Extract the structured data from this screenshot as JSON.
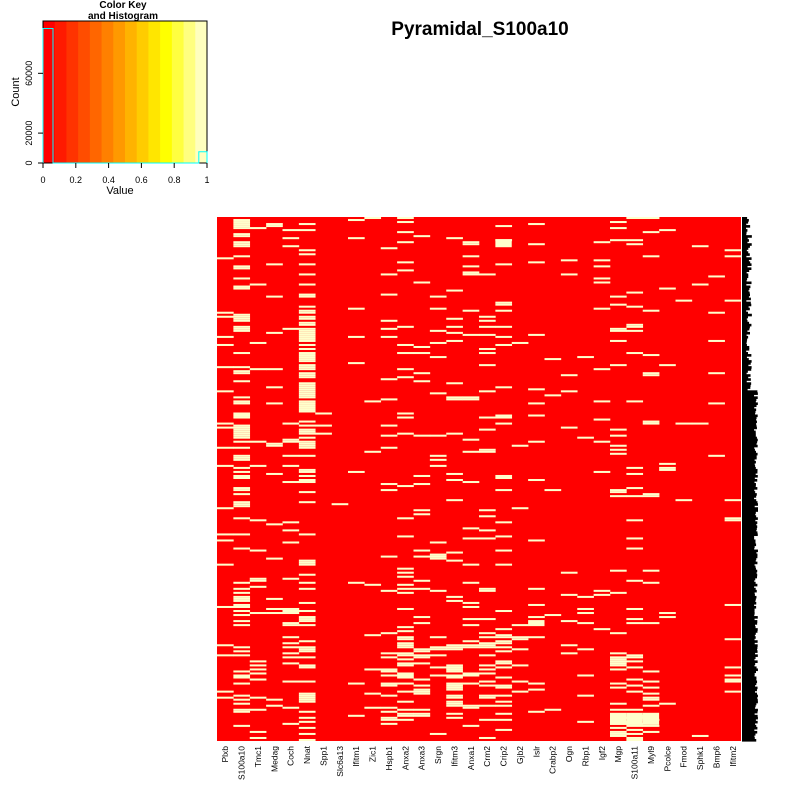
{
  "title": "Pyramidal_S100a10",
  "color_key": {
    "title_line1": "Color Key",
    "title_line2": "and Histogram",
    "xlabel": "Value",
    "ylabel": "Count",
    "x_ticks": [
      "0",
      "0.2",
      "0.4",
      "0.6",
      "0.8",
      "1"
    ],
    "y_ticks": [
      "0",
      "20000",
      "60000"
    ],
    "y_tick_values": [
      0,
      20000,
      60000
    ],
    "x_range": [
      0,
      1
    ],
    "y_range": [
      0,
      95000
    ],
    "histogram": [
      {
        "x": 0.0,
        "count": 90000
      },
      {
        "x": 0.95,
        "count": 7500
      }
    ],
    "colors": [
      "#ff0000",
      "#ff1a00",
      "#ff3300",
      "#ff4d00",
      "#ff6600",
      "#ff8000",
      "#ff9900",
      "#ffb300",
      "#ffcc00",
      "#ffe600",
      "#ffff00",
      "#ffff40",
      "#ffff80",
      "#ffffbf"
    ],
    "hist_color": "#00ffff"
  },
  "chart_data": {
    "type": "heatmap",
    "title": "Pyramidal_S100a10",
    "value_range": [
      0,
      1
    ],
    "low_color": "#ff0000",
    "high_color": "#ffffcc",
    "columns": [
      "Plxb",
      "S100a10",
      "Tmc1",
      "Medag",
      "Coch",
      "Nnat",
      "Spp1",
      "Slc6a13",
      "Ifitm1",
      "Zic1",
      "Hspb1",
      "Anxa2",
      "Anxa3",
      "Srgn",
      "Ifitm3",
      "Anxa1",
      "Crm2",
      "Crip2",
      "Gjb2",
      "Islr",
      "Crabp2",
      "Ogn",
      "Rbp1",
      "Igf2",
      "Mgp",
      "S100a11",
      "Myl9",
      "Pcolce",
      "Fmod",
      "Sphk1",
      "Bmp6",
      "Ifitm2"
    ],
    "n_rows": 260,
    "column_density": [
      0.12,
      0.3,
      0.08,
      0.06,
      0.07,
      0.28,
      0.01,
      0.01,
      0.02,
      0.04,
      0.08,
      0.1,
      0.09,
      0.08,
      0.09,
      0.06,
      0.08,
      0.1,
      0.02,
      0.04,
      0.01,
      0.03,
      0.03,
      0.04,
      0.1,
      0.08,
      0.07,
      0.03,
      0.02,
      0.02,
      0.02,
      0.03
    ]
  }
}
